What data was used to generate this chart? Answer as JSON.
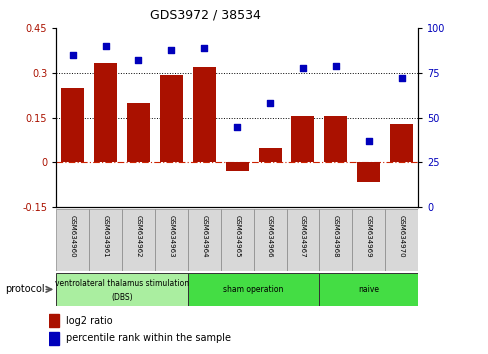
{
  "title": "GDS3972 / 38534",
  "samples": [
    "GSM634960",
    "GSM634961",
    "GSM634962",
    "GSM634963",
    "GSM634964",
    "GSM634965",
    "GSM634966",
    "GSM634967",
    "GSM634968",
    "GSM634969",
    "GSM634970"
  ],
  "log2_ratio": [
    0.25,
    0.335,
    0.2,
    0.295,
    0.32,
    -0.03,
    0.05,
    0.155,
    0.155,
    -0.065,
    0.13
  ],
  "percentile_rank": [
    85,
    90,
    82,
    88,
    89,
    45,
    58,
    78,
    79,
    37,
    72
  ],
  "ylim_left": [
    -0.15,
    0.45
  ],
  "ylim_right": [
    0,
    100
  ],
  "yticks_left": [
    -0.15,
    0,
    0.15,
    0.3,
    0.45
  ],
  "yticks_right": [
    0,
    25,
    50,
    75,
    100
  ],
  "hlines": [
    0.15,
    0.3
  ],
  "bar_color": "#AA1100",
  "scatter_color": "#0000BB",
  "zero_line_color": "#CC2200",
  "groups": [
    {
      "label": "ventrolateral thalamus stimulation\n(DBS)",
      "start": 0,
      "end": 3,
      "color": "#AAEEA0"
    },
    {
      "label": "sham operation",
      "start": 4,
      "end": 7,
      "color": "#44DD44"
    },
    {
      "label": "naive",
      "start": 8,
      "end": 10,
      "color": "#44DD44"
    }
  ],
  "protocol_label": "protocol",
  "legend_bar_label": "log2 ratio",
  "legend_dot_label": "percentile rank within the sample",
  "fig_width": 4.89,
  "fig_height": 3.54,
  "dpi": 100
}
